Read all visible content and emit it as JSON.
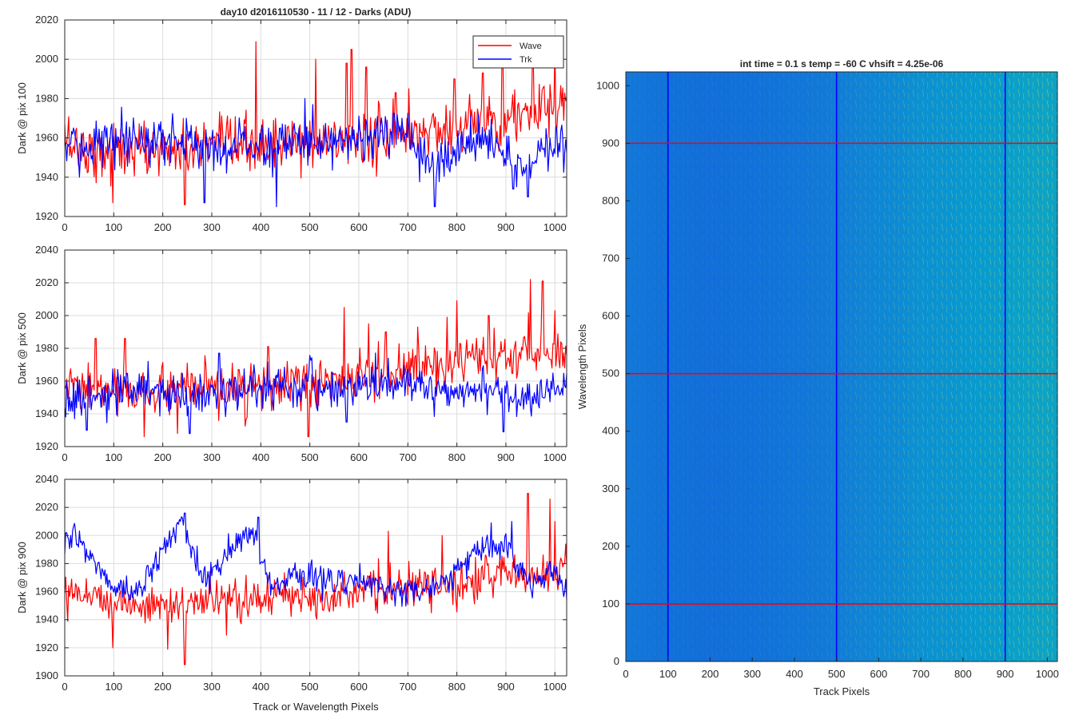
{
  "figure": {
    "title": "day10 d2016110530 - 11 / 12 - Darks (ADU)"
  },
  "chart_data": [
    {
      "type": "line",
      "panel": "top",
      "title": "day10 d2016110530 - 11 / 12 - Darks (ADU)",
      "xlabel": "",
      "ylabel": "Dark @ pix 100",
      "xlim": [
        0,
        1024
      ],
      "ylim": [
        1920,
        2020
      ],
      "xticks": [
        0,
        100,
        200,
        300,
        400,
        500,
        600,
        700,
        800,
        900,
        1000
      ],
      "yticks": [
        1920,
        1940,
        1960,
        1980,
        2000,
        2020
      ],
      "grid": true,
      "legend": "top-right",
      "series": [
        {
          "name": "Wave",
          "color": "#ff0000",
          "x": [
            0,
            50,
            100,
            150,
            200,
            250,
            300,
            350,
            400,
            450,
            500,
            550,
            600,
            650,
            700,
            750,
            800,
            850,
            900,
            950,
            1000,
            1024
          ],
          "y": [
            1960,
            1953,
            1953,
            1954,
            1954,
            1954,
            1955,
            1955,
            1956,
            1956,
            1957,
            1958,
            1959,
            1960,
            1962,
            1964,
            1966,
            1968,
            1970,
            1972,
            1974,
            1974
          ],
          "noise": 7,
          "spikes": [
            [
              98,
              1927
            ],
            [
              245,
              1926
            ],
            [
              390,
              2009
            ],
            [
              512,
              2000
            ],
            [
              575,
              1998
            ],
            [
              585,
              2005
            ],
            [
              615,
              1996
            ],
            [
              675,
              1983
            ],
            [
              702,
              1985
            ],
            [
              795,
              1990
            ],
            [
              853,
              1993
            ],
            [
              893,
              2001
            ],
            [
              955,
              1999
            ],
            [
              1000,
              2009
            ]
          ]
        },
        {
          "name": "Trk",
          "color": "#0000ff",
          "x": [
            0,
            50,
            100,
            150,
            200,
            250,
            300,
            350,
            400,
            450,
            500,
            550,
            600,
            650,
            700,
            750,
            800,
            850,
            900,
            950,
            1000,
            1024
          ],
          "y": [
            1955,
            1958,
            1957,
            1957,
            1960,
            1958,
            1955,
            1956,
            1956,
            1957,
            1959,
            1960,
            1961,
            1961,
            1960,
            1944,
            1954,
            1962,
            1950,
            1948,
            1953,
            1955
          ],
          "noise": 6,
          "spikes": [
            [
              30,
              1940
            ],
            [
              285,
              1927
            ],
            [
              432,
              1925
            ],
            [
              490,
              1980
            ],
            [
              755,
              1925
            ],
            [
              815,
              1955
            ],
            [
              915,
              1934
            ],
            [
              945,
              1930
            ]
          ]
        }
      ]
    },
    {
      "type": "line",
      "panel": "middle",
      "title": "",
      "xlabel": "",
      "ylabel": "Dark @ pix 500",
      "xlim": [
        0,
        1024
      ],
      "ylim": [
        1920,
        2040
      ],
      "xticks": [
        0,
        100,
        200,
        300,
        400,
        500,
        600,
        700,
        800,
        900,
        1000
      ],
      "yticks": [
        1920,
        1940,
        1960,
        1980,
        2000,
        2020,
        2040
      ],
      "grid": true,
      "series": [
        {
          "name": "Wave",
          "color": "#ff0000",
          "x": [
            0,
            50,
            100,
            150,
            200,
            250,
            300,
            350,
            400,
            450,
            500,
            550,
            600,
            650,
            700,
            750,
            800,
            850,
            900,
            950,
            1000,
            1024
          ],
          "y": [
            1956,
            1955,
            1954,
            1953,
            1953,
            1954,
            1955,
            1955,
            1956,
            1957,
            1958,
            1960,
            1962,
            1964,
            1966,
            1968,
            1970,
            1972,
            1974,
            1976,
            1978,
            1978
          ],
          "noise": 7,
          "spikes": [
            [
              63,
              1986
            ],
            [
              123,
              1986
            ],
            [
              162,
              1926
            ],
            [
              230,
              1928
            ],
            [
              415,
              1981
            ],
            [
              497,
              1926
            ],
            [
              570,
              2005
            ],
            [
              620,
              1995
            ],
            [
              655,
              1990
            ],
            [
              720,
              1993
            ],
            [
              780,
              1999
            ],
            [
              800,
              2009
            ],
            [
              865,
              2000
            ],
            [
              950,
              2022
            ],
            [
              975,
              2021
            ],
            [
              1000,
              2003
            ]
          ]
        },
        {
          "name": "Trk",
          "color": "#0000ff",
          "x": [
            0,
            50,
            100,
            150,
            200,
            250,
            300,
            350,
            400,
            450,
            500,
            550,
            600,
            650,
            700,
            750,
            800,
            850,
            900,
            950,
            1000,
            1024
          ],
          "y": [
            1948,
            1950,
            1951,
            1953,
            1954,
            1951,
            1952,
            1954,
            1956,
            1957,
            1956,
            1955,
            1957,
            1958,
            1957,
            1955,
            1954,
            1956,
            1952,
            1953,
            1952,
            1954
          ],
          "noise": 6,
          "spikes": [
            [
              45,
              1930
            ],
            [
              170,
              1972
            ],
            [
              255,
              1928
            ],
            [
              315,
              1977
            ],
            [
              575,
              1935
            ],
            [
              660,
              1974
            ],
            [
              895,
              1929
            ]
          ]
        }
      ]
    },
    {
      "type": "line",
      "panel": "bottom",
      "title": "",
      "xlabel": "Track or Wavelength Pixels",
      "ylabel": "Dark @ pix 900",
      "xlim": [
        0,
        1024
      ],
      "ylim": [
        1900,
        2040
      ],
      "xticks": [
        0,
        100,
        200,
        300,
        400,
        500,
        600,
        700,
        800,
        900,
        1000
      ],
      "yticks": [
        1900,
        1920,
        1940,
        1960,
        1980,
        2000,
        2020,
        2040
      ],
      "grid": true,
      "series": [
        {
          "name": "Wave",
          "color": "#ff0000",
          "x": [
            0,
            50,
            100,
            150,
            200,
            250,
            300,
            350,
            400,
            450,
            500,
            550,
            600,
            650,
            700,
            750,
            800,
            850,
            900,
            950,
            1000,
            1024
          ],
          "y": [
            1964,
            1958,
            1954,
            1950,
            1950,
            1952,
            1953,
            1954,
            1955,
            1957,
            1958,
            1959,
            1960,
            1962,
            1962,
            1963,
            1965,
            1970,
            1972,
            1972,
            1975,
            1976
          ],
          "noise": 7,
          "spikes": [
            [
              98,
              1920
            ],
            [
              210,
              1919
            ],
            [
              245,
              1908
            ],
            [
              330,
              1929
            ],
            [
              660,
              2003
            ],
            [
              770,
              2000
            ],
            [
              945,
              2030
            ],
            [
              990,
              2026
            ],
            [
              1000,
              2010
            ]
          ]
        },
        {
          "name": "Trk",
          "color": "#0000ff",
          "x": [
            0,
            20,
            60,
            100,
            150,
            200,
            240,
            280,
            320,
            380,
            420,
            460,
            520,
            600,
            680,
            720,
            780,
            850,
            900,
            950,
            1000,
            1024
          ],
          "y": [
            1990,
            1998,
            1982,
            1962,
            1960,
            1990,
            2010,
            1968,
            1982,
            2004,
            1965,
            1972,
            1970,
            1966,
            1962,
            1960,
            1970,
            1990,
            1990,
            1965,
            1975,
            1958
          ],
          "noise": 5,
          "spikes": [
            [
              3,
              2002
            ],
            [
              245,
              2016
            ],
            [
              395,
              2013
            ],
            [
              870,
              2009
            ],
            [
              912,
              2010
            ]
          ]
        }
      ]
    },
    {
      "type": "heatmap",
      "panel": "right",
      "title": "int time = 0.1 s   temp = -60 C   vhsift = 4.25e-06",
      "xlabel": "Track Pixels",
      "ylabel": "Wavelength Pixels",
      "xlim": [
        0,
        1024
      ],
      "ylim": [
        0,
        1024
      ],
      "xticks": [
        0,
        100,
        200,
        300,
        400,
        500,
        600,
        700,
        800,
        900,
        1000
      ],
      "yticks": [
        0,
        100,
        200,
        300,
        400,
        500,
        600,
        700,
        800,
        900,
        1000
      ],
      "colormap": "parula",
      "intensity_profile": {
        "x": [
          0,
          100,
          200,
          300,
          400,
          500,
          550,
          600,
          650,
          700,
          750,
          800,
          850,
          900,
          950,
          1000,
          1024
        ],
        "level": [
          0.42,
          0.38,
          0.36,
          0.38,
          0.4,
          0.44,
          0.48,
          0.5,
          0.52,
          0.55,
          0.56,
          0.58,
          0.6,
          0.62,
          0.64,
          0.66,
          0.64
        ]
      },
      "overlay_lines": [
        {
          "orientation": "vertical",
          "value": 100,
          "color": "#0000ff"
        },
        {
          "orientation": "vertical",
          "value": 500,
          "color": "#0000ff"
        },
        {
          "orientation": "vertical",
          "value": 900,
          "color": "#0000ff"
        },
        {
          "orientation": "horizontal",
          "value": 100,
          "color": "#ff0000"
        },
        {
          "orientation": "horizontal",
          "value": 500,
          "color": "#ff0000"
        },
        {
          "orientation": "horizontal",
          "value": 900,
          "color": "#ff0000"
        }
      ]
    }
  ]
}
